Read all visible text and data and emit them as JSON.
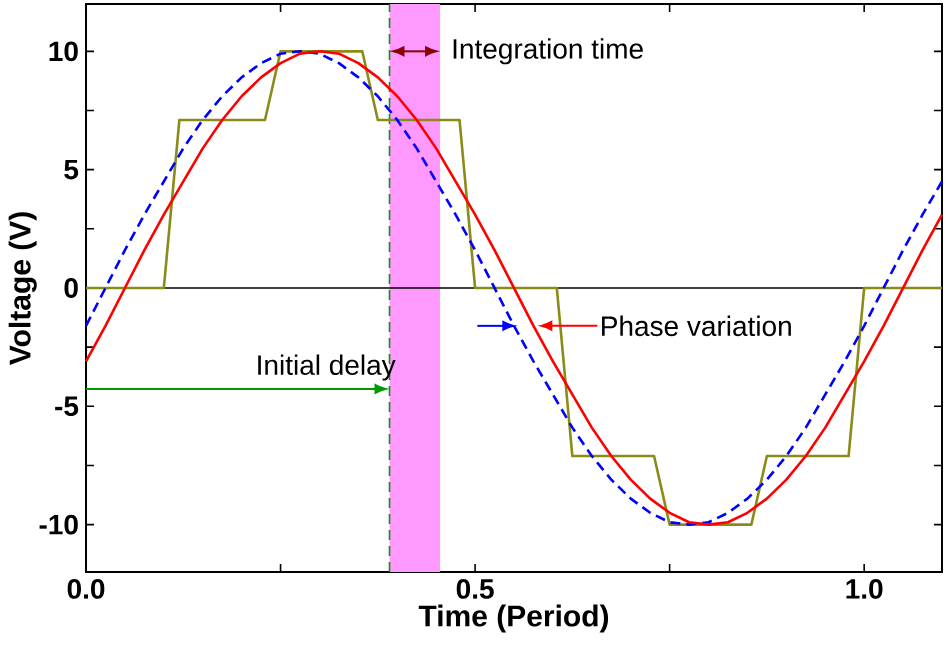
{
  "chart_data": {
    "type": "line",
    "xlabel": "Time (Period)",
    "ylabel": "Voltage (V)",
    "x": [
      0,
      0.025,
      0.05,
      0.075,
      0.1,
      0.125,
      0.15,
      0.175,
      0.2,
      0.225,
      0.25,
      0.275,
      0.3,
      0.325,
      0.35,
      0.375,
      0.4,
      0.425,
      0.45,
      0.475,
      0.5,
      0.525,
      0.55,
      0.575,
      0.6,
      0.625,
      0.65,
      0.675,
      0.7,
      0.725,
      0.75,
      0.775,
      0.8,
      0.825,
      0.85,
      0.875,
      0.9,
      0.925,
      0.95,
      0.975,
      1.0,
      1.025,
      1.05,
      1.075,
      1.1
    ],
    "series": [
      {
        "color": "#8b8b1a",
        "type": "line",
        "x": [
          0,
          0.1,
          0.12,
          0.23,
          0.25,
          0.355,
          0.375,
          0.48,
          0.5,
          0.605,
          0.625,
          0.73,
          0.75,
          0.855,
          0.875,
          0.98,
          1.0,
          1.1
        ],
        "values": [
          0,
          0,
          7.1,
          7.1,
          10,
          10,
          7.1,
          7.1,
          0,
          0,
          -7.1,
          -7.1,
          -10,
          -10,
          -7.1,
          -7.1,
          0,
          0
        ]
      },
      {
        "color": "#0000ff",
        "line_style": "dashed",
        "values": [
          -1.6,
          0,
          1.6,
          3.1,
          4.5,
          5.9,
          7.1,
          8.1,
          8.9,
          9.5,
          9.9,
          10,
          9.9,
          9.5,
          8.9,
          8.1,
          7.1,
          5.9,
          4.5,
          3.1,
          1.6,
          0,
          -1.6,
          -3.1,
          -4.5,
          -5.9,
          -7.1,
          -8.1,
          -8.9,
          -9.5,
          -9.9,
          -10,
          -9.9,
          -9.5,
          -8.9,
          -8.1,
          -7.1,
          -5.9,
          -4.5,
          -3.1,
          -1.6,
          0,
          1.6,
          3.1,
          4.5
        ]
      },
      {
        "color": "#ff0000",
        "line_style": "solid",
        "values": [
          -3.1,
          -1.6,
          0,
          1.6,
          3.1,
          4.5,
          5.9,
          7.1,
          8.1,
          8.9,
          9.5,
          9.9,
          10,
          9.9,
          9.5,
          8.9,
          8.1,
          7.1,
          5.9,
          4.5,
          3.1,
          1.6,
          0,
          -1.6,
          -3.1,
          -4.5,
          -5.9,
          -7.1,
          -8.1,
          -8.9,
          -9.5,
          -9.9,
          -10,
          -9.9,
          -9.5,
          -8.9,
          -8.1,
          -7.1,
          -5.9,
          -4.5,
          -3.1,
          -1.6,
          0,
          1.6,
          3.1
        ]
      }
    ],
    "xlim": [
      0,
      1.1
    ],
    "ylim": [
      -12,
      12
    ],
    "xticks": [
      {
        "value": 0,
        "label": "0.0"
      },
      {
        "value": 0.25,
        "label": null
      },
      0.5,
      {
        "value": 0.75,
        "label": null
      },
      {
        "value": 1.0,
        "label": "1.0"
      }
    ],
    "yticks": [
      -10,
      {
        "value": -7.5,
        "label": null
      },
      -5,
      {
        "value": -2.5,
        "label": null
      },
      0,
      {
        "value": 2.5,
        "label": null
      },
      5,
      {
        "value": 7.5,
        "label": null
      },
      10
    ],
    "ref_lines": [
      {
        "axis": "y",
        "value": 0,
        "color": "#000000",
        "line_style": "solid"
      },
      {
        "axis": "x",
        "value": 0.39,
        "color": "#009900",
        "line_style": "dashed"
      }
    ],
    "bands": [
      {
        "axis": "x",
        "from": 0.39,
        "to": 0.455,
        "color": "#ff99ff"
      }
    ],
    "annotations": [
      {
        "text": "Integration time",
        "x": 0.455,
        "y": 10
      },
      "Initial delay",
      {
        "text": "Phase variation",
        "x": 0.58,
        "y": -1.6
      }
    ]
  }
}
